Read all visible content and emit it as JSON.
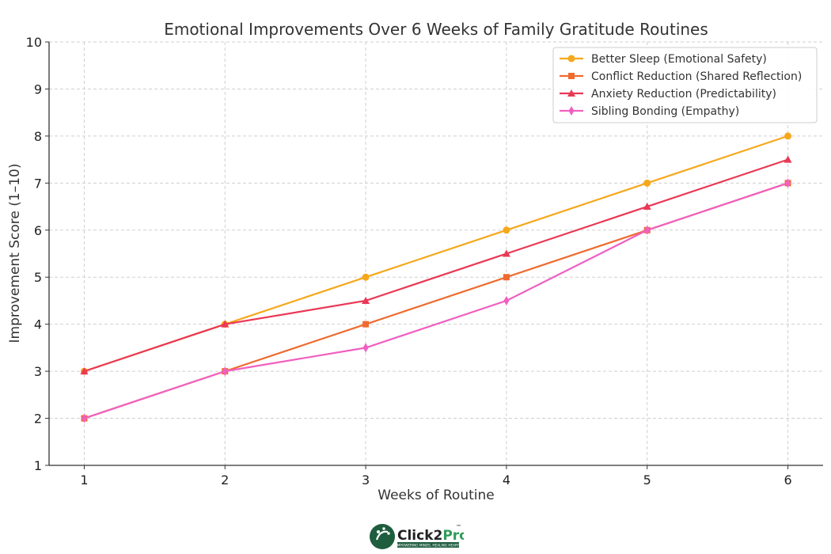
{
  "chart_data": {
    "type": "line",
    "title": "Emotional Improvements Over 6 Weeks of Family Gratitude Routines",
    "xlabel": "Weeks of Routine",
    "ylabel": "Improvement Score (1–10)",
    "x": [
      1,
      2,
      3,
      4,
      5,
      6
    ],
    "xlim": [
      0.75,
      6.25
    ],
    "ylim": [
      1,
      10
    ],
    "yticks": [
      1,
      2,
      3,
      4,
      5,
      6,
      7,
      8,
      9,
      10
    ],
    "grid": true,
    "legend_position": "top-right",
    "series": [
      {
        "name": "Better Sleep (Emotional Safety)",
        "values": [
          3,
          4,
          5,
          6,
          7,
          8
        ],
        "color": "#f5a81c",
        "marker": "circle"
      },
      {
        "name": "Conflict Reduction (Shared Reflection)",
        "values": [
          2,
          3,
          4,
          5,
          6,
          7
        ],
        "color": "#ef6b2f",
        "marker": "square"
      },
      {
        "name": "Anxiety Reduction (Predictability)",
        "values": [
          3,
          4,
          4.5,
          5.5,
          6.5,
          7.5
        ],
        "color": "#ea3855",
        "marker": "triangle"
      },
      {
        "name": "Sibling Bonding (Empathy)",
        "values": [
          2,
          3,
          3.5,
          4.5,
          6,
          7
        ],
        "color": "#f060c0",
        "marker": "diamond"
      }
    ]
  },
  "logo": {
    "brand_left": "Click2",
    "brand_right": "Pro",
    "trademark": "™",
    "tagline": "EMPOWERING MINDS, HEALING HEARTS"
  }
}
